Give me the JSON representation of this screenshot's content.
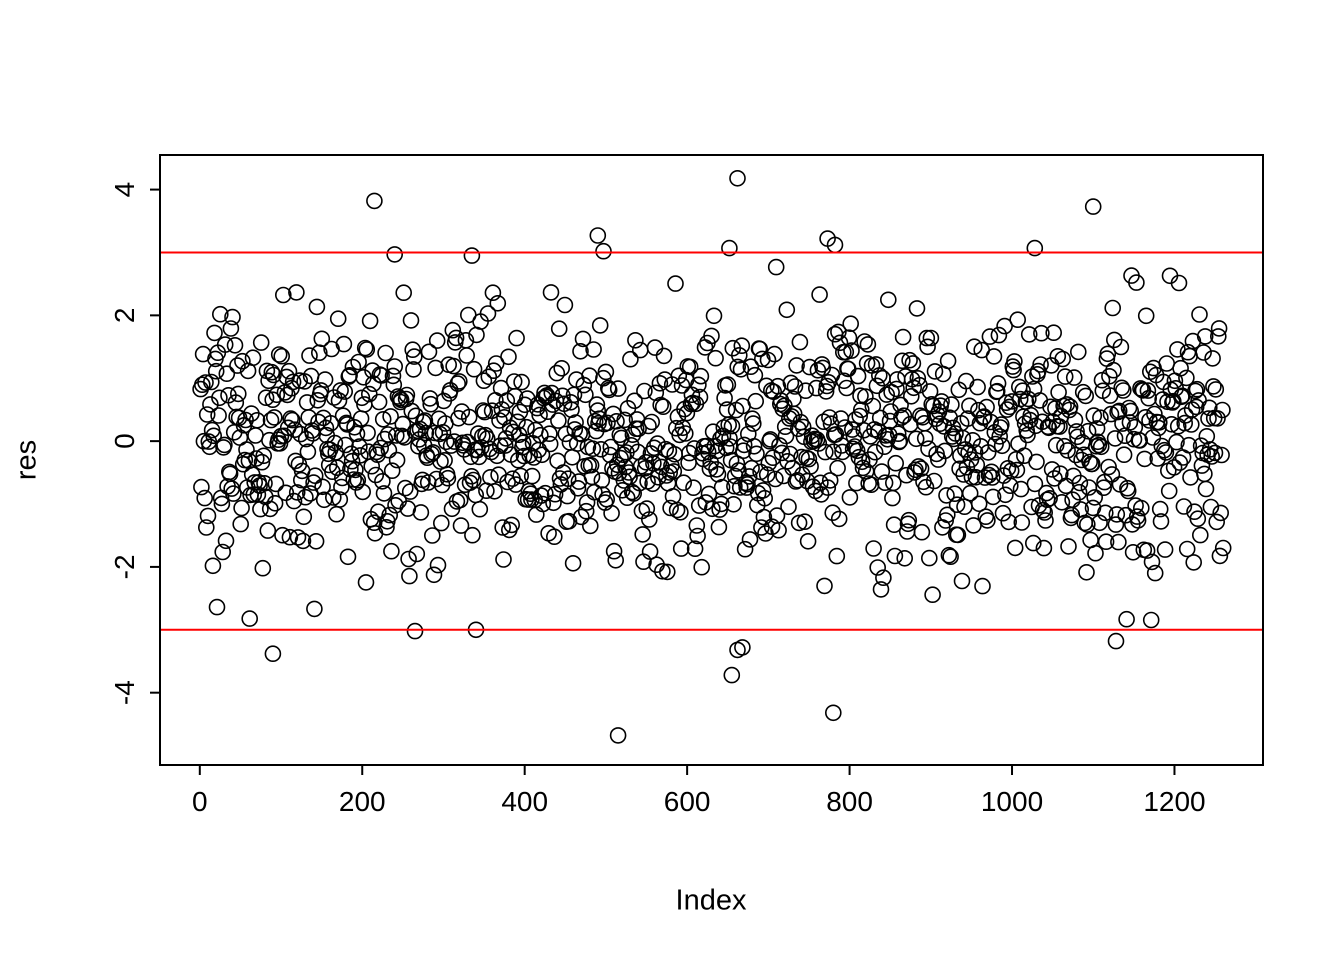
{
  "chart_data": {
    "type": "scatter",
    "title": "",
    "xlabel": "Index",
    "ylabel": "res",
    "x_ticks": [
      0,
      200,
      400,
      600,
      800,
      1000,
      1200
    ],
    "y_ticks": [
      -4,
      -2,
      0,
      2,
      4
    ],
    "xlim": [
      -49,
      1309
    ],
    "ylim": [
      -5.15,
      4.55
    ],
    "n_points": 1250,
    "grid": false,
    "legend": null,
    "point_style": {
      "shape": "open-circle",
      "color": "#000000",
      "radius_px": 7.5,
      "stroke_width": 1.6
    },
    "distribution": {
      "kind": "normal",
      "mean": 0,
      "sd": 1,
      "seed": 20240615,
      "resample_beyond": 2.85
    },
    "reference_lines": [
      {
        "y": 3,
        "color": "#FF0000"
      },
      {
        "y": -3,
        "color": "#FF0000"
      }
    ],
    "outliers": [
      {
        "x": 215,
        "y": 3.82
      },
      {
        "x": 240,
        "y": 2.97
      },
      {
        "x": 335,
        "y": 2.95
      },
      {
        "x": 490,
        "y": 3.27
      },
      {
        "x": 497,
        "y": 3.02
      },
      {
        "x": 652,
        "y": 3.07
      },
      {
        "x": 662,
        "y": 4.18
      },
      {
        "x": 773,
        "y": 3.22
      },
      {
        "x": 782,
        "y": 3.12
      },
      {
        "x": 1028,
        "y": 3.07
      },
      {
        "x": 1100,
        "y": 3.73
      },
      {
        "x": 90,
        "y": -3.38
      },
      {
        "x": 265,
        "y": -3.02
      },
      {
        "x": 340,
        "y": -3.0
      },
      {
        "x": 515,
        "y": -4.68
      },
      {
        "x": 655,
        "y": -3.72
      },
      {
        "x": 662,
        "y": -3.32
      },
      {
        "x": 668,
        "y": -3.28
      },
      {
        "x": 780,
        "y": -4.32
      },
      {
        "x": 1128,
        "y": -3.18
      }
    ]
  }
}
